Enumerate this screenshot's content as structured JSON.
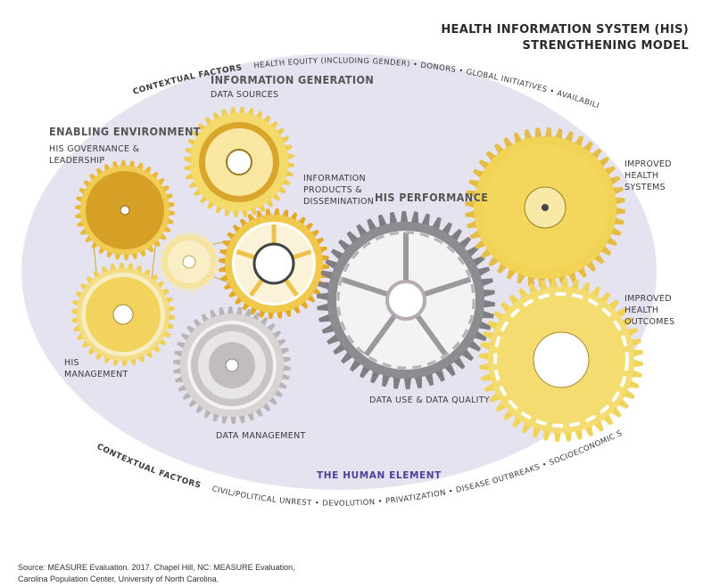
{
  "title": {
    "line1": "HEALTH INFORMATION SYSTEM (HIS)",
    "line2": "STRENGTHENING MODEL"
  },
  "contextual_top": {
    "heading": "CONTEXTUAL FACTORS",
    "items": "HEALTH EQUITY (INCLUDING GENDER) • DONORS • GLOBAL INITIATIVES • AVAILABILITY OF PUBLIC UTILITIES"
  },
  "contextual_bottom": {
    "heading": "CONTEXTUAL FACTORS",
    "items": "CIVIL/POLITICAL UNREST • DEVOLUTION • PRIVATIZATION • DISEASE OUTBREAKS • SOCIOECONOMIC STATUS • NATURAL DISASTERS"
  },
  "headings": {
    "information_generation": "INFORMATION GENERATION",
    "enabling_environment": "ENABLING ENVIRONMENT",
    "his_performance": "HIS PERFORMANCE"
  },
  "labels": {
    "data_sources": "DATA SOURCES",
    "his_governance_1": "HIS GOVERNANCE &",
    "his_governance_2": "LEADERSHIP",
    "info_products_1": "INFORMATION",
    "info_products_2": "PRODUCTS &",
    "info_products_3": "DISSEMINATION",
    "his_management_1": "HIS",
    "his_management_2": "MANAGEMENT",
    "data_management": "DATA MANAGEMENT",
    "data_use_quality": "DATA USE & DATA QUALITY",
    "improved_systems_1": "IMPROVED",
    "improved_systems_2": "HEALTH",
    "improved_systems_3": "SYSTEMS",
    "improved_outcomes_1": "IMPROVED",
    "improved_outcomes_2": "HEALTH",
    "improved_outcomes_3": "OUTCOMES"
  },
  "human_element": "THE HUMAN ELEMENT",
  "source": {
    "line1": "Source: MEASURE Evaluation. 2017. Chapel Hill, NC: MEASURE Evaluation,",
    "line2": "Carolina Population Center, University of North Carolina."
  }
}
